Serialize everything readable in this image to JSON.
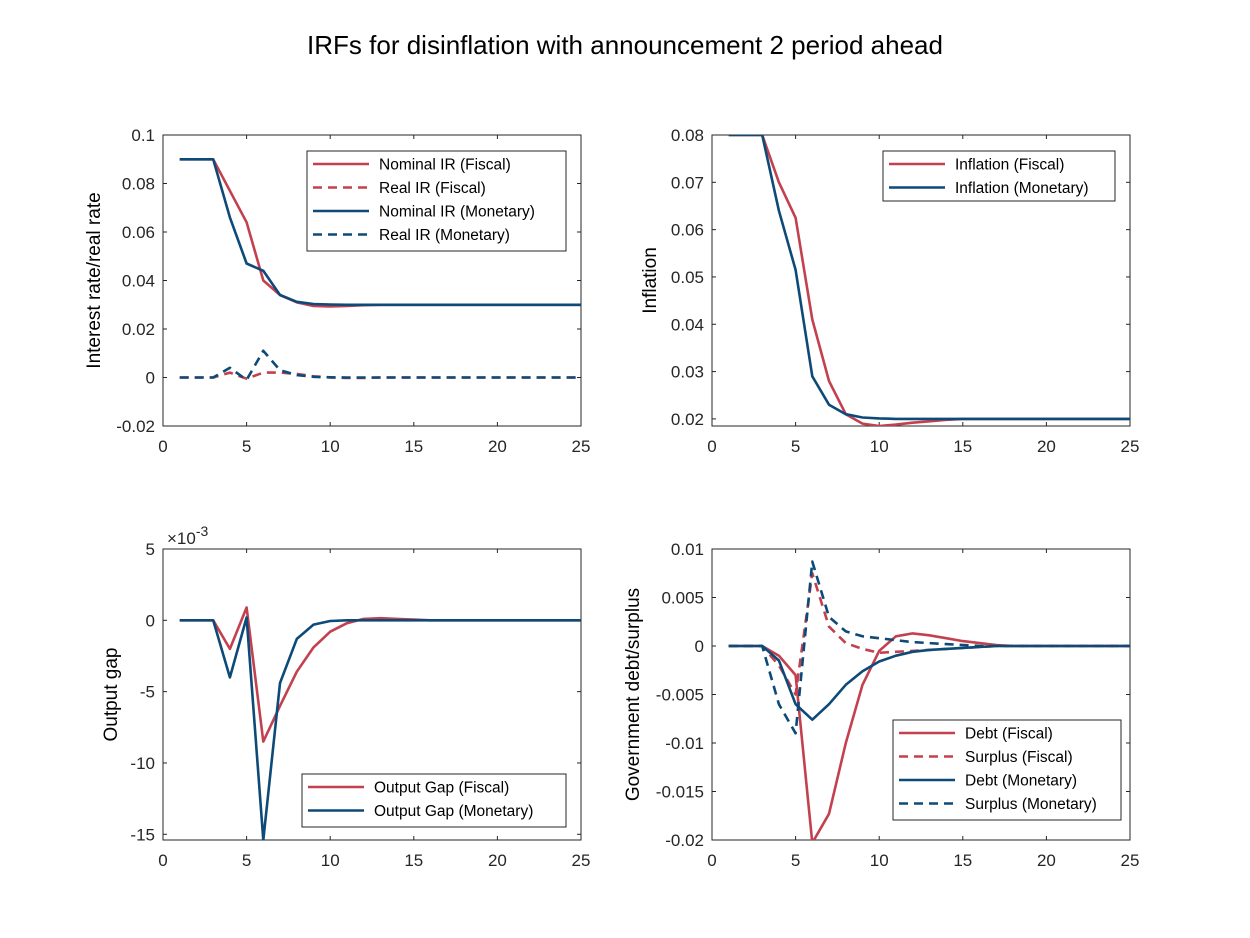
{
  "title": "IRFs for disinflation with announcement 2 period ahead",
  "colors": {
    "fiscal": "#c3414f",
    "monetary": "#0d4a78",
    "axis": "#262626"
  },
  "chart_data": [
    {
      "type": "line",
      "ylabel": "Interest rate/real rate",
      "xlim": [
        0,
        25
      ],
      "ylim": [
        -0.02,
        0.1
      ],
      "xticks": [
        "0",
        "5",
        "10",
        "15",
        "20",
        "25"
      ],
      "yticks": [
        "-0.02",
        "0",
        "0.02",
        "0.04",
        "0.06",
        "0.08",
        "0.1"
      ],
      "legend_position": "top-right",
      "series": [
        {
          "name": "Nominal IR (Fiscal)",
          "group": "fiscal",
          "dash": "solid",
          "x": [
            1,
            2,
            3,
            4,
            5,
            6,
            7,
            8,
            9,
            10,
            11,
            12,
            13,
            14,
            15,
            16,
            17,
            18,
            19,
            20,
            21,
            22,
            23,
            24,
            25
          ],
          "y": [
            0.09,
            0.09,
            0.09,
            0.077,
            0.064,
            0.04,
            0.034,
            0.031,
            0.0295,
            0.0293,
            0.0295,
            0.0298,
            0.03,
            0.03,
            0.03,
            0.03,
            0.03,
            0.03,
            0.03,
            0.03,
            0.03,
            0.03,
            0.03,
            0.03,
            0.03
          ]
        },
        {
          "name": "Real IR (Fiscal)",
          "group": "fiscal",
          "dash": "dashed",
          "x": [
            1,
            2,
            3,
            4,
            5,
            6,
            7,
            8,
            9,
            10,
            11,
            12,
            13,
            14,
            15,
            16,
            17,
            18,
            19,
            20,
            21,
            22,
            23,
            24,
            25
          ],
          "y": [
            0,
            0,
            0,
            0.002,
            -0.0005,
            0.002,
            0.002,
            0.0015,
            0.0005,
            0,
            -0.0002,
            -0.0002,
            0,
            0,
            0,
            0,
            0,
            0,
            0,
            0,
            0,
            0,
            0,
            0,
            0
          ]
        },
        {
          "name": "Nominal IR (Monetary)",
          "group": "monetary",
          "dash": "solid",
          "x": [
            1,
            2,
            3,
            4,
            5,
            6,
            7,
            8,
            9,
            10,
            11,
            12,
            13,
            14,
            15,
            16,
            17,
            18,
            19,
            20,
            21,
            22,
            23,
            24,
            25
          ],
          "y": [
            0.09,
            0.09,
            0.09,
            0.066,
            0.047,
            0.044,
            0.034,
            0.0312,
            0.0303,
            0.0301,
            0.03,
            0.03,
            0.03,
            0.03,
            0.03,
            0.03,
            0.03,
            0.03,
            0.03,
            0.03,
            0.03,
            0.03,
            0.03,
            0.03,
            0.03
          ]
        },
        {
          "name": "Real IR (Monetary)",
          "group": "monetary",
          "dash": "dashed",
          "x": [
            1,
            2,
            3,
            4,
            5,
            6,
            7,
            8,
            9,
            10,
            11,
            12,
            13,
            14,
            15,
            16,
            17,
            18,
            19,
            20,
            21,
            22,
            23,
            24,
            25
          ],
          "y": [
            0,
            0,
            0,
            0.004,
            -0.001,
            0.011,
            0.003,
            0.001,
            0.0003,
            0.0001,
            0,
            0,
            0,
            0,
            0,
            0,
            0,
            0,
            0,
            0,
            0,
            0,
            0,
            0,
            0
          ]
        }
      ]
    },
    {
      "type": "line",
      "ylabel": "Inflation",
      "xlim": [
        0,
        25
      ],
      "ylim": [
        0.0185,
        0.08
      ],
      "xticks": [
        "0",
        "5",
        "10",
        "15",
        "20",
        "25"
      ],
      "yticks": [
        "0.02",
        "0.03",
        "0.04",
        "0.05",
        "0.06",
        "0.07",
        "0.08"
      ],
      "legend_position": "top-right",
      "series": [
        {
          "name": "Inflation (Fiscal)",
          "group": "fiscal",
          "dash": "solid",
          "x": [
            1,
            2,
            3,
            4,
            5,
            6,
            7,
            8,
            9,
            10,
            11,
            12,
            13,
            14,
            15,
            16,
            17,
            18,
            19,
            20,
            21,
            22,
            23,
            24,
            25
          ],
          "y": [
            0.08,
            0.08,
            0.08,
            0.07,
            0.0625,
            0.041,
            0.028,
            0.021,
            0.019,
            0.0185,
            0.0188,
            0.0192,
            0.0195,
            0.0198,
            0.02,
            0.02,
            0.02,
            0.02,
            0.02,
            0.02,
            0.02,
            0.02,
            0.02,
            0.02,
            0.02
          ]
        },
        {
          "name": "Inflation (Monetary)",
          "group": "monetary",
          "dash": "solid",
          "x": [
            1,
            2,
            3,
            4,
            5,
            6,
            7,
            8,
            9,
            10,
            11,
            12,
            13,
            14,
            15,
            16,
            17,
            18,
            19,
            20,
            21,
            22,
            23,
            24,
            25
          ],
          "y": [
            0.08,
            0.08,
            0.08,
            0.064,
            0.0515,
            0.029,
            0.023,
            0.021,
            0.0203,
            0.0201,
            0.02,
            0.02,
            0.02,
            0.02,
            0.02,
            0.02,
            0.02,
            0.02,
            0.02,
            0.02,
            0.02,
            0.02,
            0.02,
            0.02,
            0.02
          ]
        }
      ]
    },
    {
      "type": "line",
      "ylabel": "Output gap",
      "exponent": "10",
      "exponent_power": "-3",
      "xlim": [
        0,
        25
      ],
      "ylim": [
        -15.4,
        5
      ],
      "xticks": [
        "0",
        "5",
        "10",
        "15",
        "20",
        "25"
      ],
      "yticks": [
        "-15",
        "-10",
        "-5",
        "0",
        "5"
      ],
      "legend_position": "bottom-right",
      "series": [
        {
          "name": "Output Gap (Fiscal)",
          "group": "fiscal",
          "dash": "solid",
          "x": [
            1,
            2,
            3,
            4,
            5,
            6,
            7,
            8,
            9,
            10,
            11,
            12,
            13,
            14,
            15,
            16,
            17,
            18,
            19,
            20,
            21,
            22,
            23,
            24,
            25
          ],
          "y": [
            0,
            0,
            0,
            -2,
            0.9,
            -8.5,
            -6,
            -3.6,
            -1.9,
            -0.8,
            -0.2,
            0.1,
            0.15,
            0.1,
            0.05,
            0,
            0,
            0,
            0,
            0,
            0,
            0,
            0,
            0,
            0
          ]
        },
        {
          "name": "Output Gap (Monetary)",
          "group": "monetary",
          "dash": "solid",
          "x": [
            1,
            2,
            3,
            4,
            5,
            6,
            7,
            8,
            9,
            10,
            11,
            12,
            13,
            14,
            15,
            16,
            17,
            18,
            19,
            20,
            21,
            22,
            23,
            24,
            25
          ],
          "y": [
            0,
            0,
            0,
            -4,
            0.2,
            -15.4,
            -4.4,
            -1.3,
            -0.3,
            -0.05,
            0,
            0,
            0,
            0,
            0,
            0,
            0,
            0,
            0,
            0,
            0,
            0,
            0,
            0,
            0
          ]
        }
      ]
    },
    {
      "type": "line",
      "ylabel": "Government debt/surplus",
      "xlim": [
        0,
        25
      ],
      "ylim": [
        -0.02,
        0.01
      ],
      "xticks": [
        "0",
        "5",
        "10",
        "15",
        "20",
        "25"
      ],
      "yticks": [
        "-0.02",
        "-0.015",
        "-0.01",
        "-0.005",
        "0",
        "0.005",
        "0.01"
      ],
      "legend_position": "bottom-right",
      "series": [
        {
          "name": "Debt (Fiscal)",
          "group": "fiscal",
          "dash": "solid",
          "x": [
            1,
            2,
            3,
            4,
            5,
            6,
            7,
            8,
            9,
            10,
            11,
            12,
            13,
            14,
            15,
            16,
            17,
            18,
            19,
            20,
            21,
            22,
            23,
            24,
            25
          ],
          "y": [
            0,
            0,
            0,
            -0.001,
            -0.003,
            -0.0203,
            -0.0173,
            -0.01,
            -0.004,
            -0.0005,
            0.001,
            0.0013,
            0.0011,
            0.0008,
            0.0005,
            0.0003,
            0.0001,
            0,
            0,
            0,
            0,
            0,
            0,
            0,
            0
          ]
        },
        {
          "name": "Surplus (Fiscal)",
          "group": "fiscal",
          "dash": "dashed",
          "x": [
            1,
            2,
            3,
            4,
            5,
            6,
            7,
            8,
            9,
            10,
            11,
            12,
            13,
            14,
            15,
            16,
            17,
            18,
            19,
            20,
            21,
            22,
            23,
            24,
            25
          ],
          "y": [
            0,
            0,
            0,
            -0.002,
            -0.005,
            0.0075,
            0.002,
            0.0003,
            -0.0003,
            -0.0007,
            -0.0006,
            -0.0005,
            -0.0004,
            -0.0003,
            -0.0002,
            -0.0001,
            0,
            0,
            0,
            0,
            0,
            0,
            0,
            0,
            0
          ]
        },
        {
          "name": "Debt (Monetary)",
          "group": "monetary",
          "dash": "solid",
          "x": [
            1,
            2,
            3,
            4,
            5,
            6,
            7,
            8,
            9,
            10,
            11,
            12,
            13,
            14,
            15,
            16,
            17,
            18,
            19,
            20,
            21,
            22,
            23,
            24,
            25
          ],
          "y": [
            0,
            0,
            0,
            -0.0015,
            -0.006,
            -0.0076,
            -0.006,
            -0.004,
            -0.0026,
            -0.0016,
            -0.001,
            -0.0006,
            -0.0004,
            -0.0003,
            -0.0002,
            -0.0001,
            0,
            0,
            0,
            0,
            0,
            0,
            0,
            0,
            0
          ]
        },
        {
          "name": "Surplus (Monetary)",
          "group": "monetary",
          "dash": "dashed",
          "x": [
            1,
            2,
            3,
            4,
            5,
            6,
            7,
            8,
            9,
            10,
            11,
            12,
            13,
            14,
            15,
            16,
            17,
            18,
            19,
            20,
            21,
            22,
            23,
            24,
            25
          ],
          "y": [
            0,
            0,
            0,
            -0.006,
            -0.009,
            0.0087,
            0.003,
            0.0015,
            0.001,
            0.0008,
            0.0006,
            0.0004,
            0.0003,
            0.0002,
            0.0001,
            0,
            0,
            0,
            0,
            0,
            0,
            0,
            0,
            0,
            0
          ]
        }
      ]
    }
  ]
}
